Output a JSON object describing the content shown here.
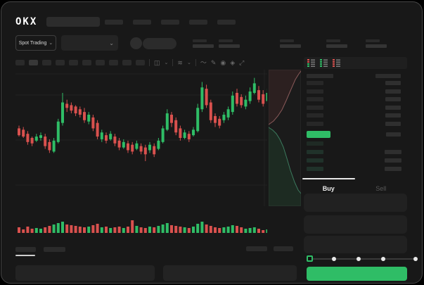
{
  "app": {
    "logo_text": "OKX"
  },
  "header": {
    "market_type_selector_label": "Spot Trading",
    "dropdown_chevron": "⌄"
  },
  "trade_panel": {
    "buy_tab_label": "Buy",
    "sell_tab_label": "Sell",
    "active_tab": "Buy",
    "amount_slider": {
      "steps": 5,
      "selected_step": 1
    }
  },
  "orderbook": {
    "view_modes": [
      "combined-book",
      "bids-only",
      "asks-only"
    ],
    "current_price_row_highlighted": true
  },
  "colors": {
    "accent_green": "#2FBD66",
    "accent_red": "#D9514E",
    "window_bg": "#181818",
    "panel_bg": "#1F1F1F"
  },
  "chart_data": {
    "type": "candlestick",
    "title": "",
    "xlabel": "",
    "ylabel": "",
    "price_range": [
      0,
      100
    ],
    "grid": true,
    "candles_format": [
      "open",
      "high",
      "low",
      "close"
    ],
    "candles": [
      [
        57,
        59,
        51,
        52
      ],
      [
        56,
        58,
        50,
        51
      ],
      [
        53,
        55,
        45,
        47
      ],
      [
        50,
        51,
        44,
        46
      ],
      [
        48,
        53,
        47,
        51
      ],
      [
        50,
        54,
        48,
        52
      ],
      [
        51,
        53,
        42,
        44
      ],
      [
        47,
        49,
        39,
        41
      ],
      [
        40,
        50,
        39,
        48
      ],
      [
        47,
        64,
        46,
        62
      ],
      [
        61,
        83,
        59,
        76
      ],
      [
        75,
        78,
        69,
        72
      ],
      [
        74,
        76,
        68,
        70
      ],
      [
        73,
        74,
        66,
        68
      ],
      [
        71,
        73,
        65,
        67
      ],
      [
        69,
        72,
        61,
        63
      ],
      [
        62,
        69,
        60,
        67
      ],
      [
        65,
        67,
        55,
        57
      ],
      [
        61,
        63,
        49,
        51
      ],
      [
        49,
        56,
        47,
        54
      ],
      [
        52,
        54,
        46,
        48
      ],
      [
        49,
        55,
        48,
        53
      ],
      [
        51,
        53,
        44,
        46
      ],
      [
        48,
        50,
        41,
        43
      ],
      [
        43,
        49,
        42,
        47
      ],
      [
        46,
        48,
        39,
        41
      ],
      [
        45,
        47,
        38,
        40
      ],
      [
        42,
        48,
        41,
        46
      ],
      [
        44,
        46,
        38,
        40
      ],
      [
        43,
        45,
        33,
        38
      ],
      [
        41,
        47,
        39,
        45
      ],
      [
        44,
        46,
        36,
        38
      ],
      [
        42,
        50,
        41,
        48
      ],
      [
        47,
        59,
        46,
        57
      ],
      [
        56,
        71,
        55,
        68
      ],
      [
        67,
        69,
        58,
        61
      ],
      [
        63,
        65,
        52,
        54
      ],
      [
        57,
        59,
        48,
        50
      ],
      [
        50,
        56,
        49,
        54
      ],
      [
        53,
        55,
        47,
        49
      ],
      [
        52,
        58,
        51,
        56
      ],
      [
        55,
        75,
        54,
        72
      ],
      [
        71,
        91,
        69,
        87
      ],
      [
        86,
        89,
        72,
        74
      ],
      [
        76,
        78,
        61,
        63
      ],
      [
        66,
        68,
        58,
        61
      ],
      [
        64,
        66,
        57,
        59
      ],
      [
        63,
        69,
        61,
        67
      ],
      [
        65,
        73,
        63,
        71
      ],
      [
        69,
        84,
        67,
        81
      ],
      [
        83,
        86,
        73,
        75
      ],
      [
        80,
        82,
        72,
        74
      ],
      [
        73,
        81,
        71,
        78
      ],
      [
        77,
        87,
        75,
        84
      ],
      [
        83,
        94,
        82,
        90
      ],
      [
        85,
        88,
        76,
        78
      ],
      [
        82,
        85,
        73,
        75
      ],
      [
        77,
        86,
        75,
        83
      ]
    ],
    "volumes": [
      8,
      5,
      9,
      6,
      7,
      6,
      8,
      10,
      12,
      14,
      16,
      12,
      11,
      10,
      9,
      8,
      9,
      11,
      13,
      8,
      9,
      7,
      8,
      9,
      7,
      9,
      18,
      10,
      8,
      7,
      9,
      8,
      10,
      12,
      14,
      11,
      10,
      9,
      8,
      7,
      9,
      13,
      16,
      12,
      10,
      8,
      7,
      8,
      9,
      11,
      10,
      8,
      6,
      7,
      8,
      6,
      4,
      5
    ],
    "orderbook_depth": {
      "asks_line": [
        [
          0,
          78
        ],
        [
          7,
          73
        ],
        [
          13,
          66
        ],
        [
          19,
          57
        ],
        [
          25,
          44
        ],
        [
          31,
          30
        ],
        [
          38,
          14
        ],
        [
          43,
          6
        ],
        [
          46,
          2
        ]
      ],
      "bids_line": [
        [
          0,
          82
        ],
        [
          6,
          86
        ],
        [
          11,
          91
        ],
        [
          16,
          99
        ],
        [
          21,
          110
        ],
        [
          26,
          126
        ],
        [
          31,
          143
        ],
        [
          37,
          160
        ],
        [
          42,
          171
        ],
        [
          46,
          176
        ]
      ]
    }
  }
}
